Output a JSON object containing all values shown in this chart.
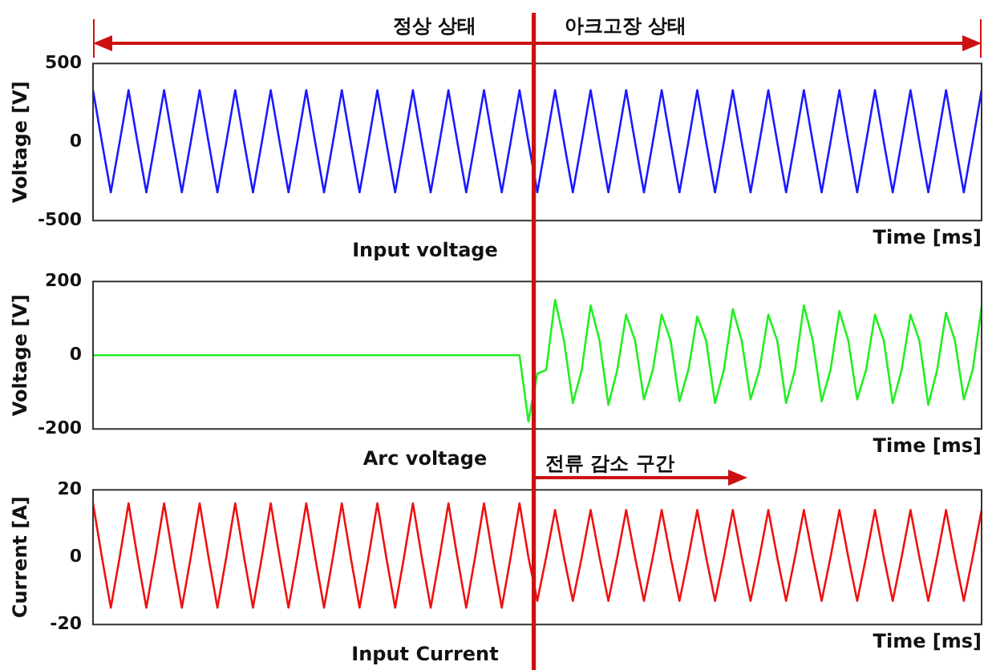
{
  "chart_data": [
    {
      "type": "line",
      "title": "Input voltage",
      "xlabel": "Time [ms]",
      "ylabel": "Voltage [V]",
      "annotations": [
        "정상 상태",
        "아크고장 상태"
      ],
      "ylim": [
        -500,
        500
      ],
      "yticks": [
        -500,
        0,
        500
      ],
      "grid": false,
      "legend": false,
      "marker": "none",
      "categories": [
        null,
        null,
        null,
        null,
        null,
        null,
        null,
        null,
        null,
        null,
        null,
        null,
        null,
        null,
        null,
        null,
        null,
        null,
        null,
        null,
        null,
        null,
        null,
        null,
        null,
        null,
        null,
        null,
        null,
        null,
        null,
        null,
        null,
        null,
        null,
        null,
        null,
        null,
        null,
        null,
        null,
        null,
        null,
        null,
        null,
        null,
        null,
        null,
        null,
        null,
        null,
        null,
        null,
        null,
        null,
        null,
        null,
        null,
        null,
        null,
        null,
        null,
        null,
        null,
        null,
        null,
        null,
        null,
        null,
        null,
        null,
        null,
        null,
        null,
        null,
        null,
        null,
        null,
        null,
        null,
        null,
        null,
        null,
        null,
        null,
        null,
        null,
        null,
        null,
        null,
        null,
        null,
        null,
        null,
        null,
        null,
        null,
        null,
        null,
        null,
        null
      ],
      "series": [
        {
          "color": "#1a1aff",
          "values": [
            330,
            0,
            -320,
            0,
            330,
            0,
            -320,
            0,
            330,
            0,
            -320,
            0,
            330,
            0,
            -320,
            0,
            330,
            0,
            -320,
            0,
            330,
            0,
            -320,
            0,
            330,
            0,
            -320,
            0,
            330,
            0,
            -320,
            0,
            330,
            0,
            -320,
            0,
            330,
            0,
            -320,
            0,
            330,
            0,
            -320,
            0,
            330,
            0,
            -320,
            0,
            330,
            0,
            -320,
            0,
            330,
            0,
            -320,
            0,
            330,
            0,
            -320,
            0,
            330,
            0,
            -320,
            0,
            330,
            0,
            -320,
            0,
            330,
            0,
            -320,
            0,
            330,
            0,
            -320,
            0,
            330,
            0,
            -320,
            0,
            330,
            0,
            -320,
            0,
            330,
            0,
            -320,
            0,
            330,
            0,
            -320,
            0,
            330,
            0,
            -320,
            0,
            330,
            0,
            -320,
            0,
            330
          ]
        }
      ]
    },
    {
      "type": "line",
      "title": "Arc voltage",
      "xlabel": "Time [ms]",
      "ylabel": "Voltage [V]",
      "ylim": [
        -200,
        200
      ],
      "yticks": [
        -200,
        0,
        200
      ],
      "grid": false,
      "legend": false,
      "marker": "none",
      "categories": [
        null,
        null,
        null,
        null,
        null,
        null,
        null,
        null,
        null,
        null,
        null,
        null,
        null,
        null,
        null,
        null,
        null,
        null,
        null,
        null,
        null,
        null,
        null,
        null,
        null,
        null,
        null,
        null,
        null,
        null,
        null,
        null,
        null,
        null,
        null,
        null,
        null,
        null,
        null,
        null,
        null,
        null,
        null,
        null,
        null,
        null,
        null,
        null,
        null,
        null,
        null,
        null,
        null,
        null,
        null,
        null,
        null,
        null,
        null,
        null,
        null,
        null,
        null,
        null,
        null,
        null,
        null,
        null,
        null,
        null,
        null,
        null,
        null,
        null,
        null,
        null,
        null,
        null,
        null,
        null,
        null,
        null,
        null,
        null,
        null,
        null,
        null,
        null,
        null,
        null,
        null,
        null,
        null,
        null,
        null,
        null,
        null,
        null,
        null,
        null,
        null
      ],
      "series": [
        {
          "color": "#22ee22",
          "values": [
            0,
            0,
            0,
            0,
            0,
            0,
            0,
            0,
            0,
            0,
            0,
            0,
            0,
            0,
            0,
            0,
            0,
            0,
            0,
            0,
            0,
            0,
            0,
            0,
            0,
            0,
            0,
            0,
            0,
            0,
            0,
            0,
            0,
            0,
            0,
            0,
            0,
            0,
            0,
            0,
            0,
            0,
            0,
            0,
            0,
            0,
            0,
            0,
            0,
            -180,
            -50,
            -40,
            150,
            40,
            -130,
            -40,
            135,
            40,
            -135,
            -40,
            110,
            40,
            -120,
            -40,
            110,
            40,
            -125,
            -40,
            105,
            40,
            -130,
            -40,
            125,
            40,
            -120,
            -40,
            110,
            40,
            -130,
            -40,
            135,
            40,
            -125,
            -40,
            120,
            40,
            -120,
            -40,
            110,
            40,
            -130,
            -40,
            110,
            40,
            -135,
            -40,
            115,
            40,
            -120,
            -40,
            130
          ]
        }
      ]
    },
    {
      "type": "line",
      "title": "Input Current",
      "xlabel": "Time [ms]",
      "ylabel": "Current [A]",
      "annotations": [
        "전류 감소 구간"
      ],
      "ylim": [
        -20,
        20
      ],
      "yticks": [
        -20,
        0,
        20
      ],
      "grid": false,
      "legend": false,
      "marker": "none",
      "categories": [
        null,
        null,
        null,
        null,
        null,
        null,
        null,
        null,
        null,
        null,
        null,
        null,
        null,
        null,
        null,
        null,
        null,
        null,
        null,
        null,
        null,
        null,
        null,
        null,
        null,
        null,
        null,
        null,
        null,
        null,
        null,
        null,
        null,
        null,
        null,
        null,
        null,
        null,
        null,
        null,
        null,
        null,
        null,
        null,
        null,
        null,
        null,
        null,
        null,
        null,
        null,
        null,
        null,
        null,
        null,
        null,
        null,
        null,
        null,
        null,
        null,
        null,
        null,
        null,
        null,
        null,
        null,
        null,
        null,
        null,
        null,
        null,
        null,
        null,
        null,
        null,
        null,
        null,
        null,
        null,
        null,
        null,
        null,
        null,
        null,
        null,
        null,
        null,
        null,
        null,
        null,
        null,
        null,
        null,
        null,
        null,
        null,
        null,
        null,
        null,
        null
      ],
      "series": [
        {
          "color": "#ee1111",
          "values": [
            16,
            0,
            -15,
            0,
            16,
            0,
            -15,
            0,
            16,
            0,
            -15,
            0,
            16,
            0,
            -15,
            0,
            16,
            0,
            -15,
            0,
            16,
            0,
            -15,
            0,
            16,
            0,
            -15,
            0,
            16,
            0,
            -15,
            0,
            16,
            0,
            -15,
            0,
            16,
            0,
            -15,
            0,
            16,
            0,
            -15,
            0,
            16,
            0,
            -15,
            0,
            16,
            0,
            -13,
            0,
            14,
            0,
            -13,
            0,
            14,
            0,
            -13,
            0,
            14,
            0,
            -13,
            0,
            14,
            0,
            -13,
            0,
            14,
            0,
            -13,
            0,
            14,
            0,
            -13,
            0,
            14,
            0,
            -13,
            0,
            14,
            0,
            -13,
            0,
            14,
            0,
            -13,
            0,
            14,
            0,
            -13,
            0,
            14,
            0,
            -13,
            0,
            14,
            0,
            -13,
            0,
            14
          ]
        }
      ]
    }
  ]
}
